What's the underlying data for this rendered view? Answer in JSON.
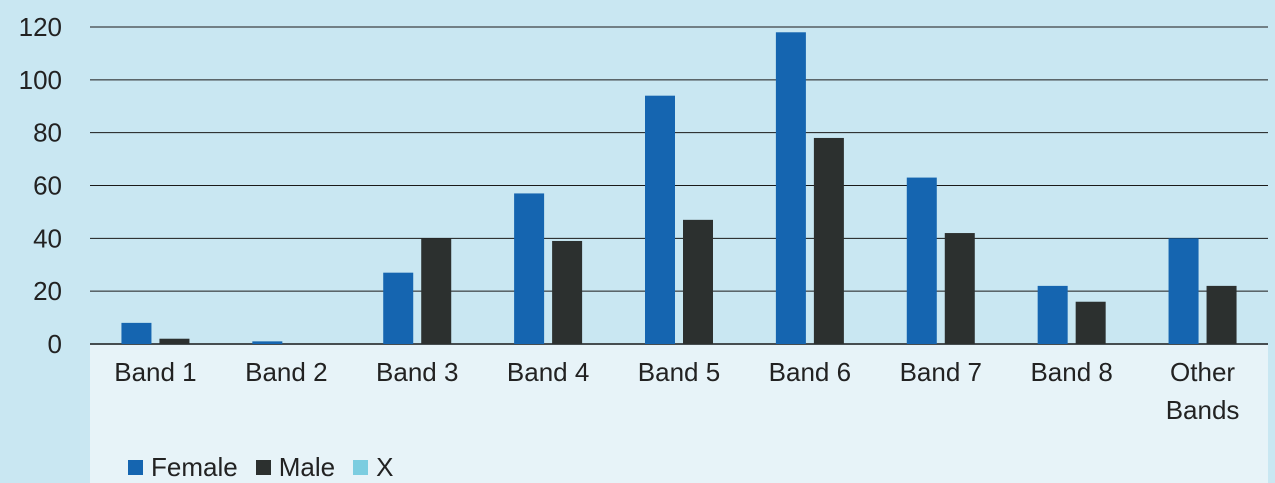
{
  "chart_data": {
    "type": "bar",
    "categories": [
      "Band 1",
      "Band 2",
      "Band 3",
      "Band 4",
      "Band 5",
      "Band 6",
      "Band 7",
      "Band 8",
      "Other Bands"
    ],
    "series": [
      {
        "name": "Female",
        "color": "#1565b0",
        "values": [
          8,
          1,
          27,
          57,
          94,
          118,
          63,
          22,
          40
        ]
      },
      {
        "name": "Male",
        "color": "#2c302f",
        "values": [
          2,
          0,
          40,
          39,
          47,
          78,
          42,
          16,
          22
        ]
      },
      {
        "name": "X",
        "color": "#7ccde0",
        "values": [
          0,
          0,
          0,
          0,
          0,
          0,
          0,
          0,
          0
        ]
      }
    ],
    "yticks": [
      0,
      20,
      40,
      60,
      80,
      100,
      120
    ],
    "ylim": [
      0,
      120
    ],
    "grid": true,
    "legend_position": "bottom-left"
  }
}
